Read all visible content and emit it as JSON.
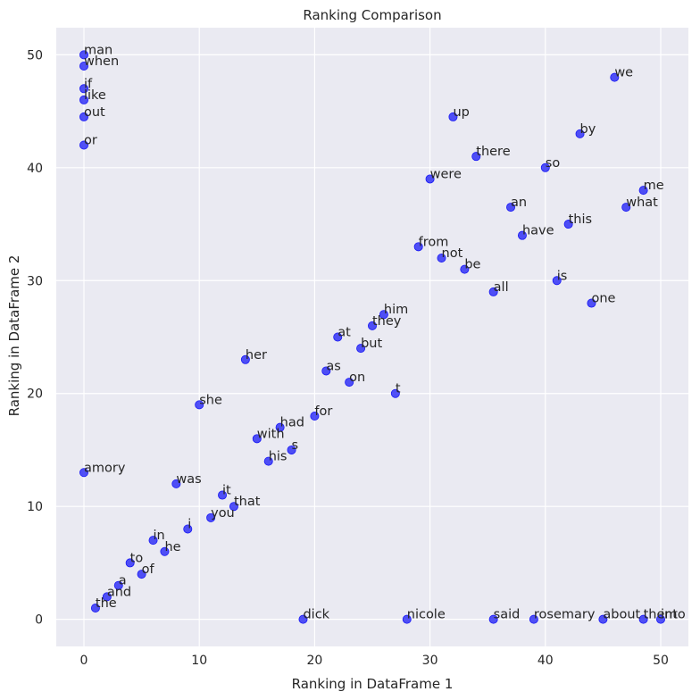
{
  "chart_data": {
    "type": "scatter",
    "title": "Ranking Comparison",
    "xlabel": "Ranking in DataFrame 1",
    "ylabel": "Ranking in DataFrame 2",
    "xlim": [
      -2.4,
      52.4
    ],
    "ylim": [
      -2.4,
      52.4
    ],
    "xticks": [
      "0",
      "10",
      "20",
      "30",
      "40",
      "50"
    ],
    "yticks": [
      "0",
      "10",
      "20",
      "30",
      "40",
      "50"
    ],
    "grid": true,
    "colors": {
      "plot_bg": "#eaeaf2",
      "grid": "#ffffff",
      "point": "#1a1af5"
    },
    "points": [
      {
        "label": "man",
        "x": 0,
        "y": 50
      },
      {
        "label": "when",
        "x": 0,
        "y": 49
      },
      {
        "label": "if",
        "x": 0,
        "y": 47
      },
      {
        "label": "like",
        "x": 0,
        "y": 46
      },
      {
        "label": "out",
        "x": 0,
        "y": 44.5
      },
      {
        "label": "or",
        "x": 0,
        "y": 42
      },
      {
        "label": "amory",
        "x": 0,
        "y": 13
      },
      {
        "label": "the",
        "x": 1,
        "y": 1
      },
      {
        "label": "and",
        "x": 2,
        "y": 2
      },
      {
        "label": "a",
        "x": 3,
        "y": 3
      },
      {
        "label": "to",
        "x": 4,
        "y": 5
      },
      {
        "label": "of",
        "x": 5,
        "y": 4
      },
      {
        "label": "in",
        "x": 6,
        "y": 7
      },
      {
        "label": "he",
        "x": 7,
        "y": 6
      },
      {
        "label": "was",
        "x": 8,
        "y": 12
      },
      {
        "label": "i",
        "x": 9,
        "y": 8
      },
      {
        "label": "she",
        "x": 10,
        "y": 19
      },
      {
        "label": "you",
        "x": 11,
        "y": 9
      },
      {
        "label": "it",
        "x": 12,
        "y": 11
      },
      {
        "label": "that",
        "x": 13,
        "y": 10
      },
      {
        "label": "her",
        "x": 14,
        "y": 23
      },
      {
        "label": "with",
        "x": 15,
        "y": 16
      },
      {
        "label": "his",
        "x": 16,
        "y": 14
      },
      {
        "label": "had",
        "x": 17,
        "y": 17
      },
      {
        "label": "s",
        "x": 18,
        "y": 15
      },
      {
        "label": "dick",
        "x": 19,
        "y": 0
      },
      {
        "label": "for",
        "x": 20,
        "y": 18
      },
      {
        "label": "as",
        "x": 21,
        "y": 22
      },
      {
        "label": "at",
        "x": 22,
        "y": 25
      },
      {
        "label": "on",
        "x": 23,
        "y": 21
      },
      {
        "label": "but",
        "x": 24,
        "y": 24
      },
      {
        "label": "they",
        "x": 25,
        "y": 26
      },
      {
        "label": "him",
        "x": 26,
        "y": 27
      },
      {
        "label": "t",
        "x": 27,
        "y": 20
      },
      {
        "label": "nicole",
        "x": 28,
        "y": 0
      },
      {
        "label": "from",
        "x": 29,
        "y": 33
      },
      {
        "label": "were",
        "x": 30,
        "y": 39
      },
      {
        "label": "not",
        "x": 31,
        "y": 32
      },
      {
        "label": "up",
        "x": 32,
        "y": 44.5
      },
      {
        "label": "be",
        "x": 33,
        "y": 31
      },
      {
        "label": "there",
        "x": 34,
        "y": 41
      },
      {
        "label": "said",
        "x": 35.5,
        "y": 0
      },
      {
        "label": "all",
        "x": 35.5,
        "y": 29
      },
      {
        "label": "an",
        "x": 37,
        "y": 36.5
      },
      {
        "label": "have",
        "x": 38,
        "y": 34
      },
      {
        "label": "rosemary",
        "x": 39,
        "y": 0
      },
      {
        "label": "so",
        "x": 40,
        "y": 40
      },
      {
        "label": "is",
        "x": 41,
        "y": 30
      },
      {
        "label": "this",
        "x": 42,
        "y": 35
      },
      {
        "label": "by",
        "x": 43,
        "y": 43
      },
      {
        "label": "one",
        "x": 44,
        "y": 28
      },
      {
        "label": "about",
        "x": 45,
        "y": 0
      },
      {
        "label": "we",
        "x": 46,
        "y": 48
      },
      {
        "label": "what",
        "x": 47,
        "y": 36.5
      },
      {
        "label": "me",
        "x": 48.5,
        "y": 38
      },
      {
        "label": "them",
        "x": 48.5,
        "y": 0
      },
      {
        "label": "into",
        "x": 50,
        "y": 0
      }
    ]
  }
}
